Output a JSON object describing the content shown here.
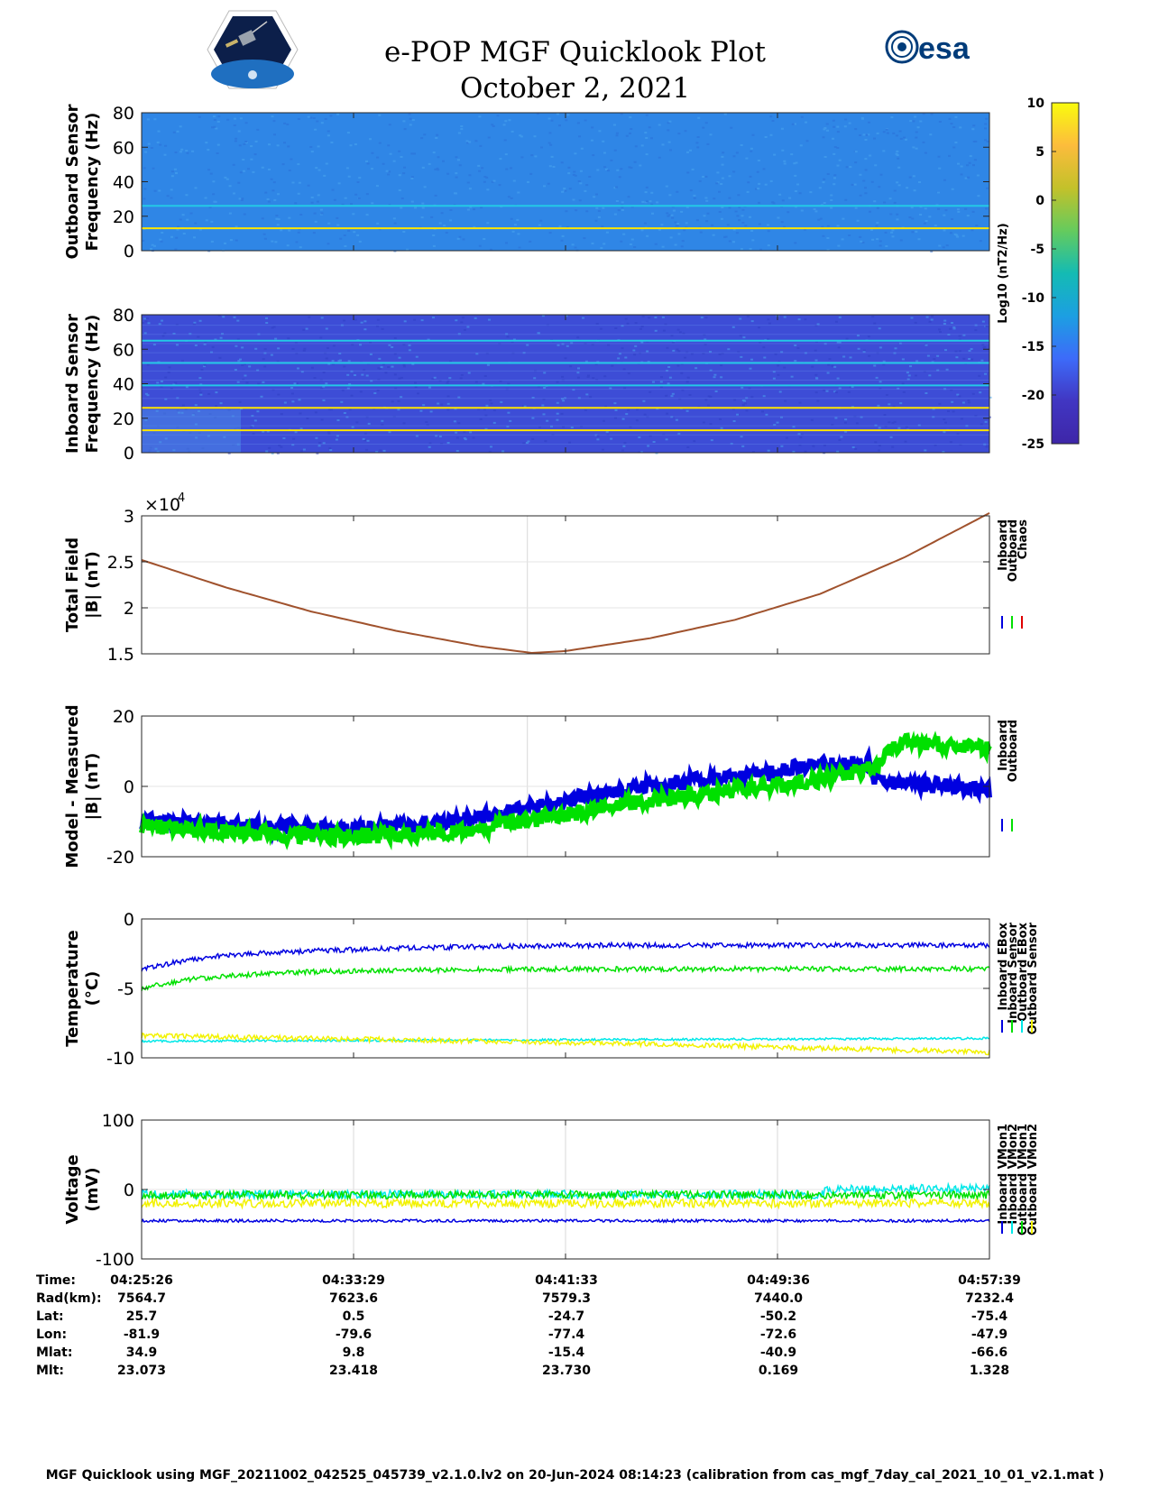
{
  "title": "e-POP MGF Quicklook Plot",
  "date": "October 2, 2021",
  "logos": {
    "left": "cassiope",
    "right": "esa"
  },
  "footer": "MGF Quicklook using MGF_20211002_042525_045739_v2.1.0.lv2 on 20-Jun-2024 08:14:23 (calibration from cas_mgf_7day_cal_2021_10_01_v2.1.mat )",
  "colors": {
    "spec_bg_outboard": "#2f86e6",
    "spec_bg_inboard": "#3d4dd6",
    "line_yellow": "#ffe500",
    "line_cyan": "#24c9e6",
    "blue": "#0000e0",
    "green": "#00e000",
    "red": "#e00000",
    "yellow": "#f2f200",
    "cyan": "#00e8e8",
    "trace": "#a0522d"
  },
  "colorbar": {
    "label": "Log10 (nT2/Hz)",
    "ticks": [
      "10",
      "5",
      "0",
      "-5",
      "-10",
      "-15",
      "-20",
      "-25"
    ],
    "colors": [
      "#f9fb0e",
      "#fcbc3c",
      "#c3c12a",
      "#65cb5d",
      "#14bbb3",
      "#1c9fe2",
      "#3d6bf9",
      "#4136c2",
      "#3e26a8"
    ]
  },
  "chart_data": [
    {
      "id": "outboard_spectrogram",
      "type": "heatmap",
      "ylabel": [
        "Outboard Sensor",
        "Frequency (Hz)"
      ],
      "yticks": [
        "80",
        "60",
        "40",
        "20",
        "0"
      ],
      "ylim": [
        0,
        80
      ],
      "lines": [
        {
          "freq": 13,
          "color": "yellow"
        },
        {
          "freq": 26,
          "color": "cyan"
        }
      ]
    },
    {
      "id": "inboard_spectrogram",
      "type": "heatmap",
      "ylabel": [
        "Inboard Sensor",
        "Frequency (Hz)"
      ],
      "yticks": [
        "80",
        "60",
        "40",
        "20",
        "0"
      ],
      "ylim": [
        0,
        80
      ],
      "lines": [
        {
          "freq": 13,
          "color": "yellow"
        },
        {
          "freq": 26,
          "color": "yellow"
        },
        {
          "freq": 39,
          "color": "cyan"
        },
        {
          "freq": 52,
          "color": "cyan"
        },
        {
          "freq": 65,
          "color": "cyan"
        }
      ]
    },
    {
      "id": "total_field",
      "type": "line",
      "ylabel": [
        "Total Field",
        "|B| (nT)"
      ],
      "yticks": [
        "3",
        "2.5",
        "2",
        "1.5"
      ],
      "ylim": [
        1.5,
        3.0
      ],
      "exponent": "×10",
      "exponent_power": "4",
      "legend": [
        "Inboard",
        "Outboard",
        "Chaos"
      ],
      "legend_colors": [
        "blue",
        "green",
        "red"
      ],
      "x": [
        0,
        0.1,
        0.2,
        0.3,
        0.4,
        0.46,
        0.5,
        0.6,
        0.7,
        0.8,
        0.9,
        1.0
      ],
      "y": [
        2.52,
        2.22,
        1.96,
        1.75,
        1.58,
        1.51,
        1.53,
        1.67,
        1.87,
        2.15,
        2.55,
        3.03
      ]
    },
    {
      "id": "model_minus_measured",
      "type": "line",
      "ylabel": [
        "Model - Measured",
        "|B| (nT)"
      ],
      "yticks": [
        "20",
        "0",
        "-20"
      ],
      "ylim": [
        -20,
        20
      ],
      "legend": [
        "Inboard",
        "Outboard"
      ],
      "legend_colors": [
        "blue",
        "green"
      ],
      "series": [
        {
          "x": [
            0,
            0.1,
            0.2,
            0.3,
            0.4,
            0.5,
            0.6,
            0.7,
            0.8,
            0.86,
            0.865,
            0.9,
            1.0
          ],
          "y": [
            -10,
            -11,
            -12,
            -11.5,
            -9,
            -4,
            0,
            3,
            6,
            7,
            2,
            1,
            -1
          ]
        },
        {
          "x": [
            0,
            0.1,
            0.2,
            0.3,
            0.4,
            0.5,
            0.6,
            0.7,
            0.8,
            0.86,
            0.9,
            1.0
          ],
          "y": [
            -11,
            -13,
            -14,
            -14,
            -12,
            -8,
            -4,
            -1,
            2,
            5,
            13,
            11
          ]
        }
      ]
    },
    {
      "id": "temperature",
      "type": "line",
      "ylabel": [
        "Temperature",
        "(°C)"
      ],
      "yticks": [
        "0",
        "-5",
        "-10"
      ],
      "ylim": [
        -10,
        0
      ],
      "legend": [
        "Inboard EBox",
        "Inboard Sensor",
        "Outboard EBox",
        "Outboard Sensor"
      ],
      "legend_colors": [
        "blue",
        "green",
        "cyan",
        "yellow"
      ],
      "series": [
        {
          "x": [
            0,
            0.05,
            0.1,
            0.2,
            0.3,
            0.5,
            1.0
          ],
          "y": [
            -3.6,
            -3.0,
            -2.6,
            -2.3,
            -2.1,
            -1.9,
            -1.9
          ]
        },
        {
          "x": [
            0,
            0.05,
            0.1,
            0.2,
            0.3,
            0.5,
            1.0
          ],
          "y": [
            -5.0,
            -4.4,
            -4.1,
            -3.8,
            -3.7,
            -3.6,
            -3.6
          ]
        },
        {
          "x": [
            0,
            1.0
          ],
          "y": [
            -8.8,
            -8.6
          ]
        },
        {
          "x": [
            0,
            0.3,
            0.6,
            1.0
          ],
          "y": [
            -8.4,
            -8.7,
            -9.0,
            -9.6
          ]
        }
      ]
    },
    {
      "id": "voltage",
      "type": "line",
      "ylabel": [
        "Voltage",
        "(mV)"
      ],
      "yticks": [
        "100",
        "0",
        "-100"
      ],
      "ylim": [
        -100,
        100
      ],
      "legend": [
        "Inboard VMon1",
        "Inboard VMon2",
        "Outboard VMon1",
        "Outboard VMon2"
      ],
      "legend_colors": [
        "blue",
        "cyan",
        "green",
        "yellow"
      ],
      "series": [
        {
          "x": [
            0,
            1
          ],
          "y": [
            -45,
            -45
          ]
        },
        {
          "x": [
            0,
            0.8,
            0.81,
            1
          ],
          "y": [
            -7,
            -7,
            0,
            2
          ]
        },
        {
          "x": [
            0,
            1
          ],
          "y": [
            -8,
            -8
          ]
        },
        {
          "x": [
            0,
            1
          ],
          "y": [
            -20,
            -20
          ]
        }
      ]
    }
  ],
  "ephemeris": {
    "row_labels": [
      "Time:",
      "Rad(km):",
      "Lat:",
      "Lon:",
      "Mlat:",
      "Mlt:"
    ],
    "columns": [
      [
        "04:25:26",
        "7564.7",
        "25.7",
        "-81.9",
        "34.9",
        "23.073"
      ],
      [
        "04:33:29",
        "7623.6",
        "0.5",
        "-79.6",
        "9.8",
        "23.418"
      ],
      [
        "04:41:33",
        "7579.3",
        "-24.7",
        "-77.4",
        "-15.4",
        "23.730"
      ],
      [
        "04:49:36",
        "7440.0",
        "-50.2",
        "-72.6",
        "-40.9",
        "0.169"
      ],
      [
        "04:57:39",
        "7232.4",
        "-75.4",
        "-47.9",
        "-66.6",
        "1.328"
      ]
    ]
  }
}
